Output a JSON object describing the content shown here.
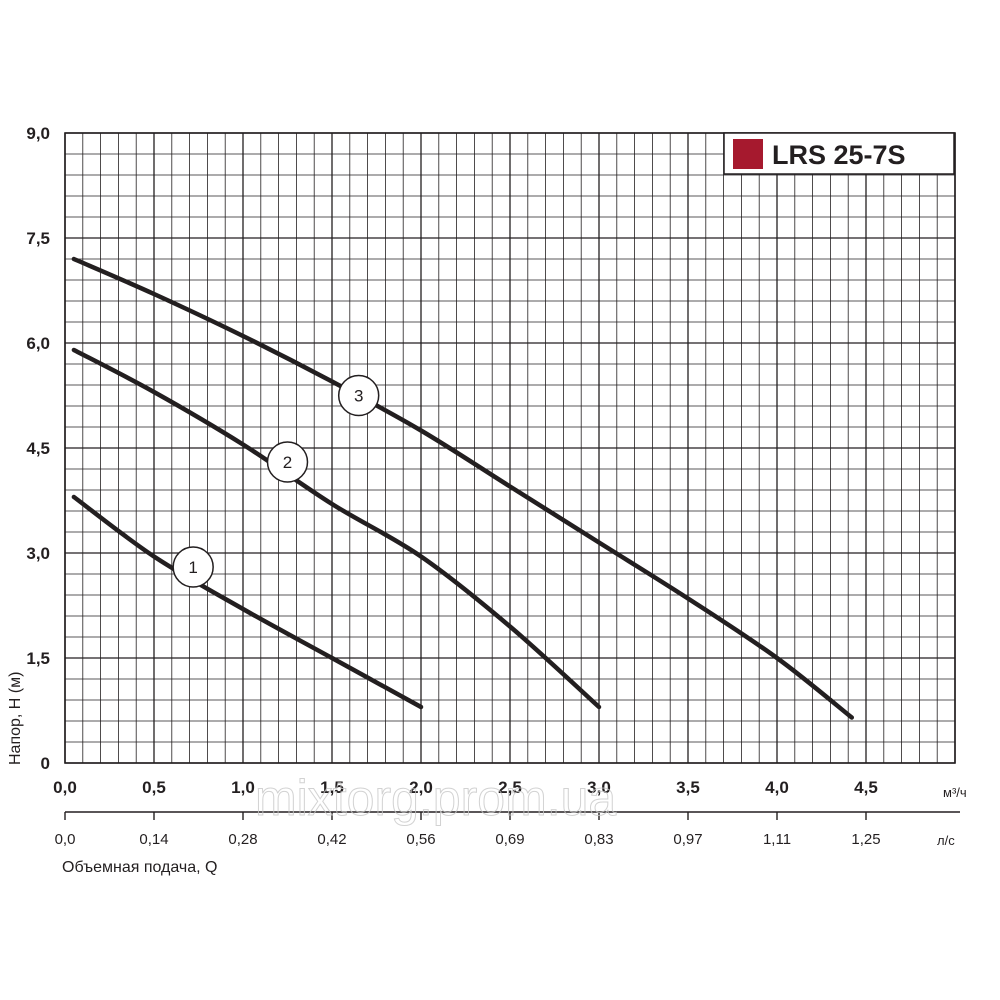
{
  "chart_data": {
    "type": "line",
    "title": "",
    "legend": {
      "label": "LRS 25-7S",
      "color": "#a6192e",
      "position": "top-right"
    },
    "ylabel": "Напор, H (м)",
    "xlabel": "Объемная подача, Q",
    "x_unit": "м³/ч",
    "x2_unit": "л/с",
    "xlim": [
      0,
      5
    ],
    "ylim": [
      0,
      9
    ],
    "grid": true,
    "y_ticks": [
      "0",
      "1,5",
      "3,0",
      "4,5",
      "6,0",
      "7,5",
      "9,0"
    ],
    "y_tick_values": [
      0,
      1.5,
      3.0,
      4.5,
      6.0,
      7.5,
      9.0
    ],
    "x_ticks": [
      "0,0",
      "0,5",
      "1,0",
      "1,5",
      "2,0",
      "2,5",
      "3,0",
      "3,5",
      "4,0",
      "4,5"
    ],
    "x_tick_values": [
      0,
      0.5,
      1.0,
      1.5,
      2.0,
      2.5,
      3.0,
      3.5,
      4.0,
      4.5
    ],
    "x2_ticks": [
      "0,0",
      "0,14",
      "0,28",
      "0,42",
      "0,56",
      "0,69",
      "0,83",
      "0,97",
      "1,11",
      "1,25"
    ],
    "series": [
      {
        "name": "1",
        "label_at": [
          0.72,
          2.8
        ],
        "points": [
          [
            0.05,
            3.8
          ],
          [
            0.5,
            2.95
          ],
          [
            1.0,
            2.2
          ],
          [
            1.5,
            1.5
          ],
          [
            2.0,
            0.8
          ]
        ]
      },
      {
        "name": "2",
        "label_at": [
          1.25,
          4.3
        ],
        "points": [
          [
            0.05,
            5.9
          ],
          [
            0.5,
            5.3
          ],
          [
            1.0,
            4.55
          ],
          [
            1.5,
            3.7
          ],
          [
            2.0,
            2.95
          ],
          [
            2.5,
            1.95
          ],
          [
            3.0,
            0.8
          ]
        ]
      },
      {
        "name": "3",
        "label_at": [
          1.65,
          5.25
        ],
        "points": [
          [
            0.05,
            7.2
          ],
          [
            0.5,
            6.7
          ],
          [
            1.0,
            6.1
          ],
          [
            1.5,
            5.45
          ],
          [
            2.0,
            4.75
          ],
          [
            2.5,
            3.95
          ],
          [
            3.0,
            3.15
          ],
          [
            3.5,
            2.35
          ],
          [
            4.0,
            1.5
          ],
          [
            4.42,
            0.65
          ]
        ]
      }
    ]
  },
  "watermark": "mixtorg.prom.ua"
}
